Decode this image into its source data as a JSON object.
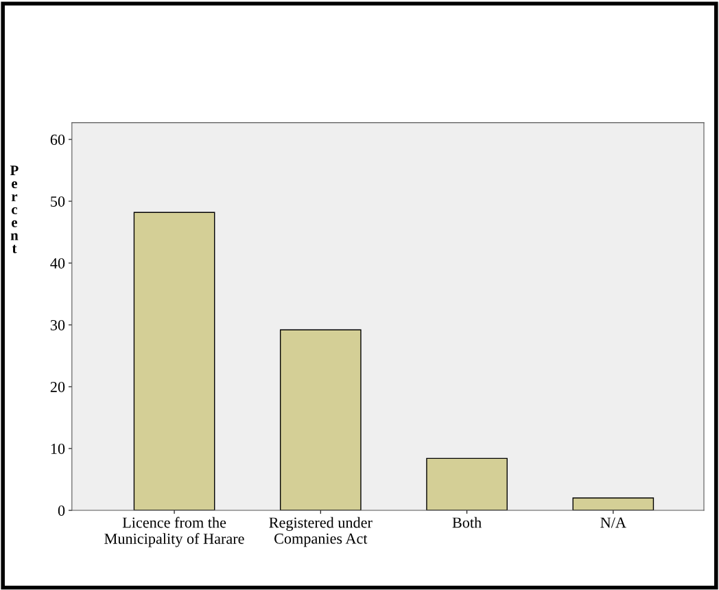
{
  "chart_data": {
    "type": "bar",
    "ylabel": "Percent",
    "categories": [
      "Licence from the\nMunicipality of Harare",
      "Registered under\nCompanies Act",
      "Both",
      "N/A"
    ],
    "values": [
      48.2,
      29.2,
      8.4,
      2.0
    ],
    "color": "#d4cf96",
    "ylim": [
      0,
      62.7
    ],
    "yticks": [
      0,
      10,
      20,
      30,
      40,
      50,
      60
    ],
    "grid": false,
    "legend": false
  }
}
